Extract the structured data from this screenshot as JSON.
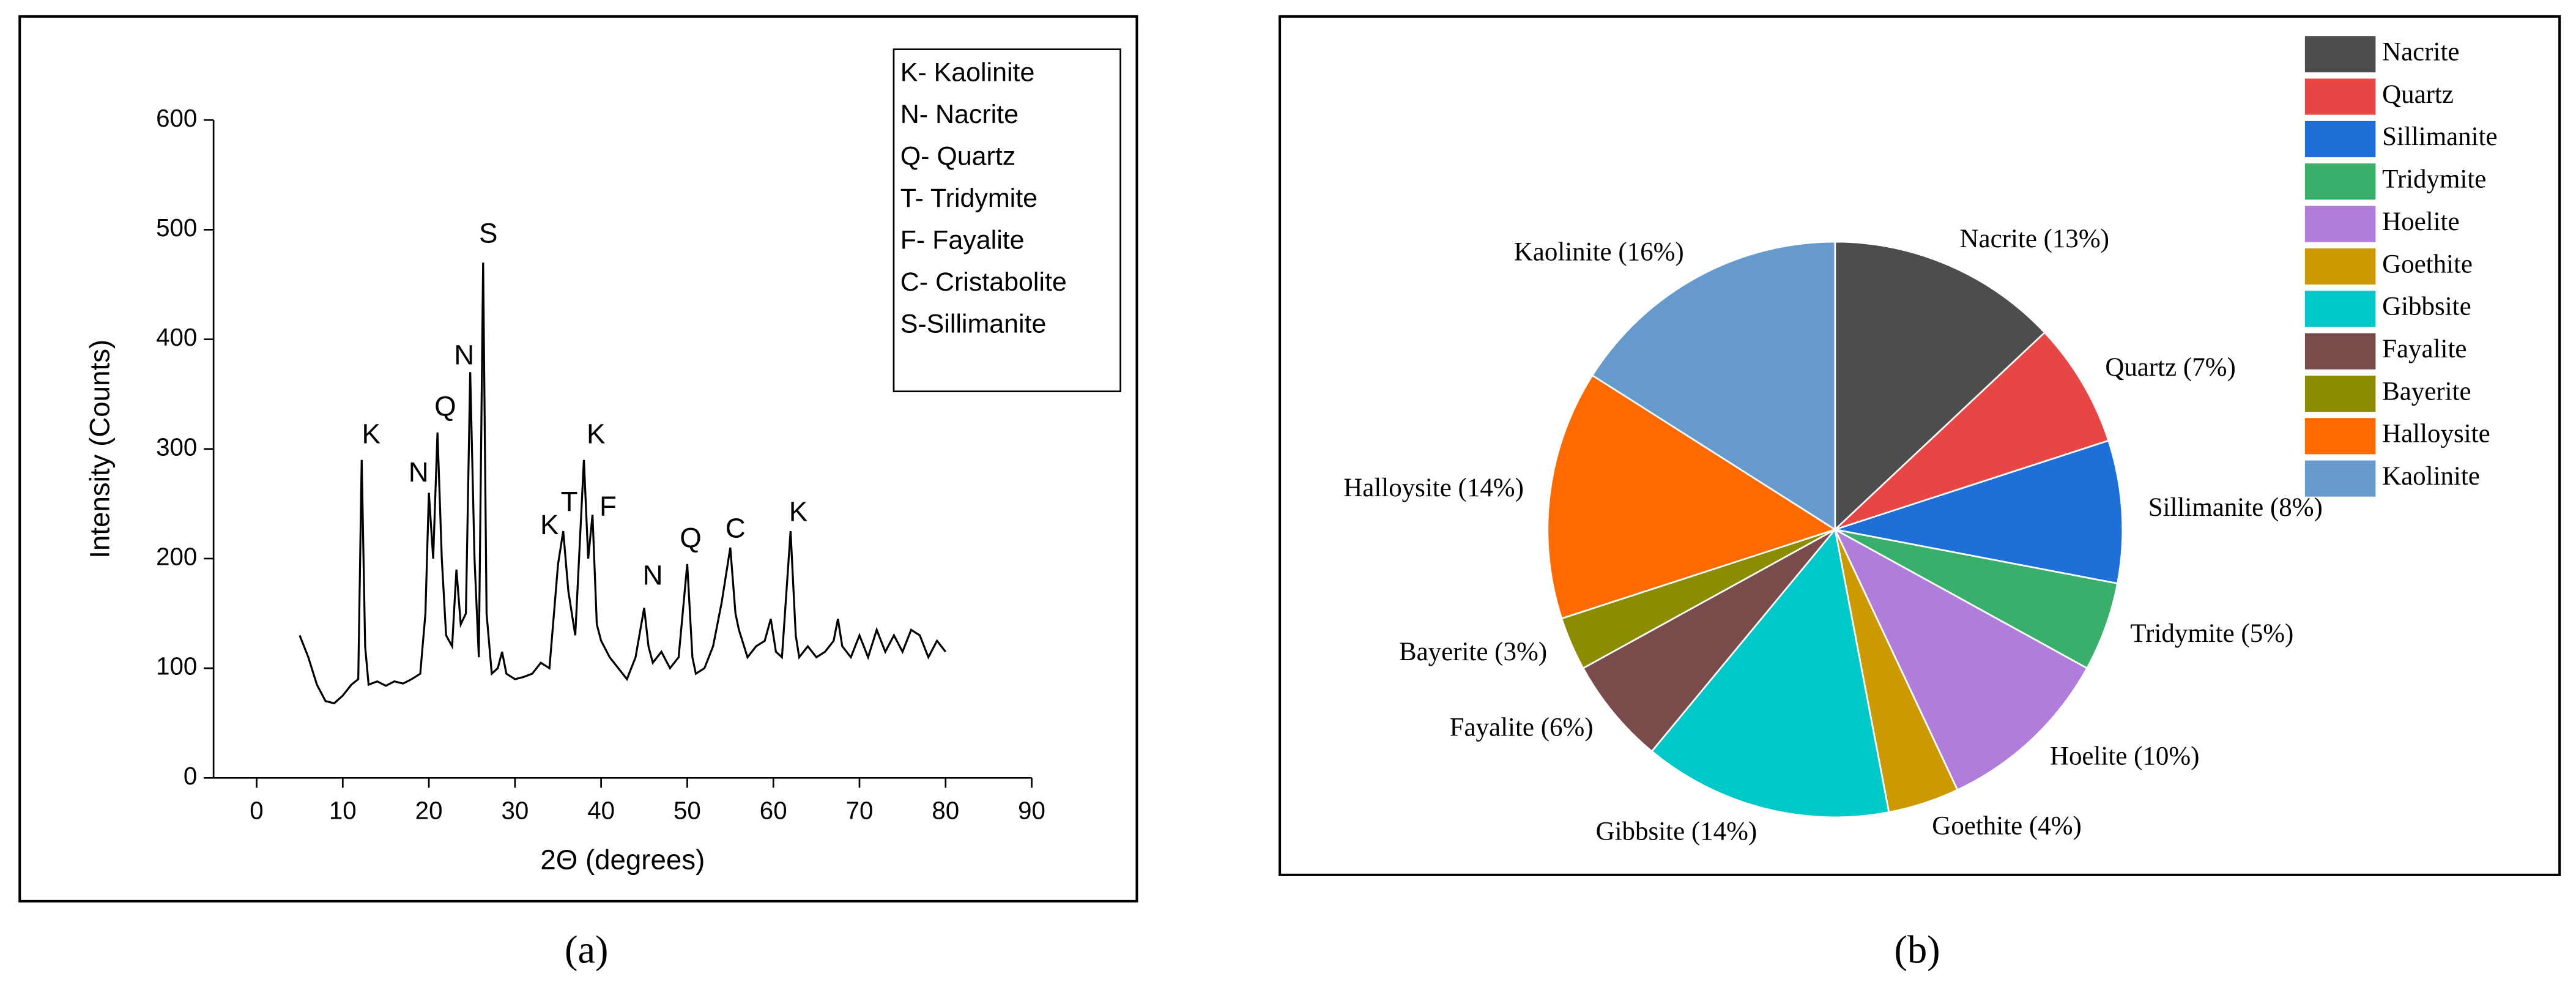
{
  "chart_data": [
    {
      "type": "line",
      "caption": "(a)",
      "xlabel": "2Θ (degrees)",
      "ylabel": "Intensity (Counts)",
      "color": "#000000",
      "xlim": [
        -5,
        90
      ],
      "xticks": [
        0,
        10,
        20,
        30,
        40,
        50,
        60,
        70,
        80,
        90
      ],
      "ylim": [
        0,
        600
      ],
      "yticks": [
        0,
        100,
        200,
        300,
        400,
        500,
        600
      ],
      "x": [
        5,
        6,
        7,
        8,
        9,
        10,
        11,
        11.8,
        12.2,
        12.6,
        13,
        14,
        15,
        16,
        17,
        18,
        19,
        19.6,
        20,
        20.5,
        21,
        21.5,
        22,
        22.7,
        23.2,
        23.7,
        24.3,
        24.8,
        25.3,
        25.8,
        26.3,
        26.7,
        27.3,
        28,
        28.5,
        29,
        30,
        31,
        32,
        33,
        34,
        35,
        35.6,
        36.2,
        37,
        38,
        38.5,
        39,
        39.5,
        40,
        41,
        42,
        43,
        44,
        45,
        45.5,
        46,
        47,
        48,
        49,
        50,
        50.6,
        51,
        52,
        53,
        54,
        55,
        55.6,
        56,
        57,
        58,
        59,
        59.7,
        60.3,
        61,
        62,
        62.6,
        63,
        64,
        65,
        66,
        67,
        67.5,
        68,
        69,
        70,
        71,
        72,
        73,
        74,
        75,
        76,
        77,
        78,
        79,
        80
      ],
      "values": [
        130,
        110,
        85,
        70,
        68,
        75,
        85,
        90,
        290,
        120,
        85,
        88,
        84,
        88,
        86,
        90,
        95,
        150,
        260,
        200,
        315,
        200,
        130,
        120,
        190,
        140,
        150,
        370,
        200,
        110,
        470,
        150,
        95,
        100,
        115,
        95,
        90,
        92,
        95,
        105,
        100,
        195,
        225,
        170,
        130,
        290,
        200,
        240,
        140,
        125,
        110,
        100,
        90,
        110,
        155,
        120,
        105,
        115,
        100,
        110,
        195,
        110,
        95,
        100,
        120,
        160,
        210,
        150,
        135,
        110,
        120,
        125,
        145,
        115,
        110,
        225,
        130,
        110,
        120,
        110,
        115,
        125,
        145,
        120,
        110,
        130,
        110,
        135,
        115,
        130,
        115,
        135,
        130,
        110,
        125,
        115
      ],
      "annotations": [
        {
          "text": "K",
          "x": 13.3,
          "y": 312
        },
        {
          "text": "N",
          "x": 18.8,
          "y": 277
        },
        {
          "text": "Q",
          "x": 21.9,
          "y": 337
        },
        {
          "text": "N",
          "x": 24.1,
          "y": 384
        },
        {
          "text": "S",
          "x": 26.9,
          "y": 495
        },
        {
          "text": "K",
          "x": 34,
          "y": 229
        },
        {
          "text": "T",
          "x": 36.3,
          "y": 250
        },
        {
          "text": "K",
          "x": 39.4,
          "y": 312
        },
        {
          "text": "F",
          "x": 40.8,
          "y": 246
        },
        {
          "text": "N",
          "x": 46,
          "y": 183
        },
        {
          "text": "Q",
          "x": 50.4,
          "y": 217
        },
        {
          "text": "C",
          "x": 55.6,
          "y": 226
        },
        {
          "text": "K",
          "x": 62.9,
          "y": 241
        }
      ],
      "key": [
        "K- Kaolinite",
        "N- Nacrite",
        "Q- Quartz",
        "T- Tridymite",
        "F- Fayalite",
        "C- Cristabolite",
        "S-Sillimanite"
      ]
    },
    {
      "type": "pie",
      "caption": "(b)",
      "categories": [
        "Nacrite",
        "Quartz",
        "Sillimanite",
        "Tridymite",
        "Hoelite",
        "Goethite",
        "Gibbsite",
        "Fayalite",
        "Bayerite",
        "Halloysite",
        "Kaolinite"
      ],
      "values": [
        13,
        7,
        8,
        5,
        10,
        4,
        14,
        6,
        3,
        14,
        16
      ],
      "value_labels": [
        "Nacrite (13%)",
        "Quartz (7%)",
        "Sillimanite (8%)",
        "Tridymite (5%)",
        "Hoelite (10%)",
        "Goethite (4%)",
        "Gibbsite (14%)",
        "Fayalite (6%)",
        "Bayerite (3%)",
        "Halloysite (14%)",
        "Kaolinite (16%)"
      ],
      "colors": [
        "#4d4d4d",
        "#e84545",
        "#1f6fd8",
        "#3aae6b",
        "#b07ddb",
        "#cc9a00",
        "#00c8c8",
        "#7a4b4b",
        "#8c8c00",
        "#ff6a00",
        "#6699cc"
      ]
    }
  ]
}
